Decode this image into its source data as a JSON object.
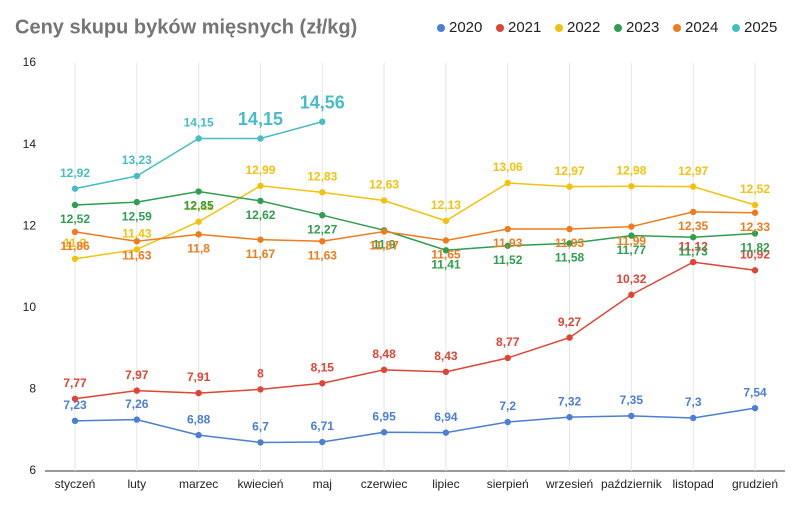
{
  "chart_data": {
    "type": "line",
    "title": "Ceny skupu byków mięsnych (zł/kg)",
    "categories": [
      "styczeń",
      "luty",
      "marzec",
      "kwiecień",
      "maj",
      "czerwiec",
      "lipiec",
      "sierpień",
      "wrzesień",
      "październik",
      "listopad",
      "grudzień"
    ],
    "ylim": [
      6,
      16
    ],
    "yticks": [
      6,
      8,
      10,
      12,
      14,
      16
    ],
    "xgrid": true,
    "legend": "top-right",
    "series": [
      {
        "name": "2020",
        "color": "#4a7fd4",
        "values": [
          7.23,
          7.26,
          6.88,
          6.7,
          6.71,
          6.95,
          6.94,
          7.2,
          7.32,
          7.35,
          7.3,
          7.54
        ],
        "value_labels": [
          "7,23",
          "7,26",
          "6,88",
          "6,7",
          "6,71",
          "6,95",
          "6,94",
          "7,2",
          "7,32",
          "7,35",
          "7,3",
          "7,54"
        ]
      },
      {
        "name": "2021",
        "color": "#e04434",
        "values": [
          7.77,
          7.97,
          7.91,
          8,
          8.15,
          8.48,
          8.43,
          8.77,
          9.27,
          10.32,
          11.12,
          10.92
        ],
        "value_labels": [
          "7,77",
          "7,97",
          "7,91",
          "8",
          "8,15",
          "8,48",
          "8,43",
          "8,77",
          "9,27",
          "10,32",
          "11,12",
          "10,92"
        ]
      },
      {
        "name": "2022",
        "color": "#f4c20d",
        "values": [
          11.2,
          11.43,
          12.11,
          12.99,
          12.83,
          12.63,
          12.13,
          13.06,
          12.97,
          12.98,
          12.97,
          12.52
        ],
        "value_labels": [
          "11,2",
          "11,43",
          "12,11",
          "12,99",
          "12,83",
          "12,63",
          "12,13",
          "13,06",
          "12,97",
          "12,98",
          "12,97",
          "12,52"
        ]
      },
      {
        "name": "2023",
        "color": "#2e9e4f",
        "values": [
          12.52,
          12.59,
          12.85,
          12.62,
          12.27,
          11.9,
          11.41,
          11.52,
          11.58,
          11.77,
          11.73,
          11.82
        ],
        "value_labels": [
          "12,52",
          "12,59",
          "12,85",
          "12,62",
          "12,27",
          "11,9",
          "11,41",
          "11,52",
          "11,58",
          "11,77",
          "11,73",
          "11,82"
        ]
      },
      {
        "name": "2024",
        "color": "#f07b1a",
        "values": [
          11.86,
          11.63,
          11.8,
          11.67,
          11.63,
          11.87,
          11.65,
          11.93,
          11.93,
          11.99,
          12.35,
          12.33
        ],
        "value_labels": [
          "11,86",
          "11,63",
          "11,8",
          "11,67",
          "11,63",
          "11,87",
          "11,65",
          "11,93",
          "11,93",
          "11,99",
          "12,35",
          "12,33"
        ]
      },
      {
        "name": "2025",
        "color": "#46bdc6",
        "values": [
          12.92,
          13.23,
          14.15,
          14.15,
          14.56,
          null,
          null,
          null,
          null,
          null,
          null,
          null
        ],
        "value_labels": [
          "12,92",
          "13,23",
          "14,15",
          "14,15",
          "14,56",
          null,
          null,
          null,
          null,
          null,
          null,
          null
        ]
      }
    ]
  }
}
